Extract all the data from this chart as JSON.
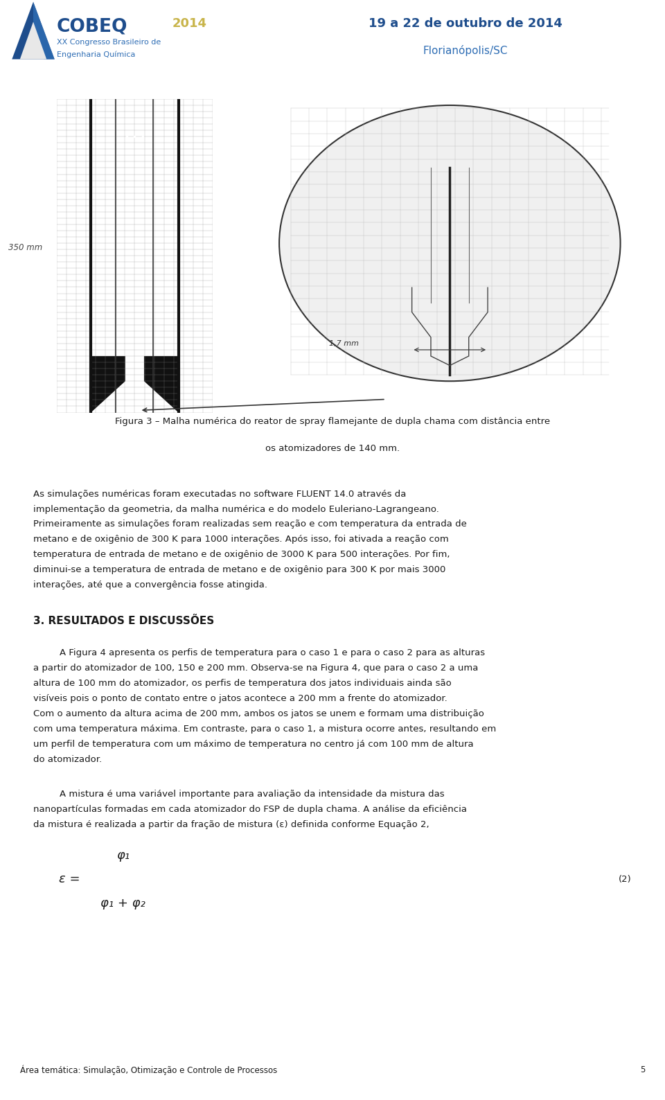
{
  "white": "#ffffff",
  "header_bg": "#e8e8e8",
  "footer_bg": "#c8c8c8",
  "text_color": "#1a1a1a",
  "blue_dark": "#1e4d8c",
  "blue_mid": "#2e6db4",
  "grid_color": "#888888",
  "wall_color": "#111111",
  "header_date": "19 a 22 de outubro de 2014",
  "header_city": "Florianópolis/SC",
  "congress_line1": "XX Congresso Brasileiro de",
  "congress_line2": "Engenharia Química",
  "cobeq_text": "COBEQ",
  "year_text": "2014",
  "fig_caption_line1": "Figura 3 – Malha numérica do reator de spray flamejante de dupla chama com distância entre",
  "fig_caption_line2": "os atomizadores de 140 mm.",
  "p1_lines": [
    "As simulações numéricas foram executadas no software FLUENT 14.0 através da",
    "implementação da geometria, da malha numérica e do modelo Euleriano-Lagrangeano.",
    "Primeiramente as simulações foram realizadas sem reação e com temperatura da entrada de",
    "metano e de oxigênio de 300 K para 1000 interações. Após isso, foi ativada a reação com",
    "temperatura de entrada de metano e de oxigênio de 3000 K para 500 interações. Por fim,",
    "diminui-se a temperatura de entrada de metano e de oxigênio para 300 K por mais 3000",
    "interações, até que a convergência fosse atingida."
  ],
  "section_title": "3. RESULTADOS E DISCUSSÕES",
  "p2_lines": [
    "A Figura 4 apresenta os perfis de temperatura para o caso 1 e para o caso 2 para as alturas",
    "a partir do atomizador de 100, 150 e 200 mm. Observa-se na Figura 4, que para o caso 2 a uma",
    "altura de 100 mm do atomizador, os perfis de temperatura dos jatos individuais ainda são",
    "visíveis pois o ponto de contato entre o jatos acontece a 200 mm a frente do atomizador.",
    "Com o aumento da altura acima de 200 mm, ambos os jatos se unem e formam uma distribuição",
    "com uma temperatura máxima. Em contraste, para o caso 1, a mistura ocorre antes, resultando em",
    "um perfil de temperatura com um máximo de temperatura no centro já com 100 mm de altura",
    "do atomizador."
  ],
  "p3_lines": [
    "A mistura é uma variável importante para avaliação da intensidade da mistura das",
    "nanopartículas formadas em cada atomizador do FSP de dupla chama. A análise da eficiência",
    "da mistura é realizada a partir da fração de mistura (ε) definida conforme Equação 2,"
  ],
  "eq_epsilon": "ε =",
  "eq_phi1": "φ₁",
  "eq_phi12": "φ₁ + φ₂",
  "eq_label": "(2)",
  "footer_text": "Área temática: Simulação, Otimização e Controle de Processos",
  "footer_page": "5",
  "label_350mm": "350 mm",
  "label_17mm": "1,7 mm"
}
